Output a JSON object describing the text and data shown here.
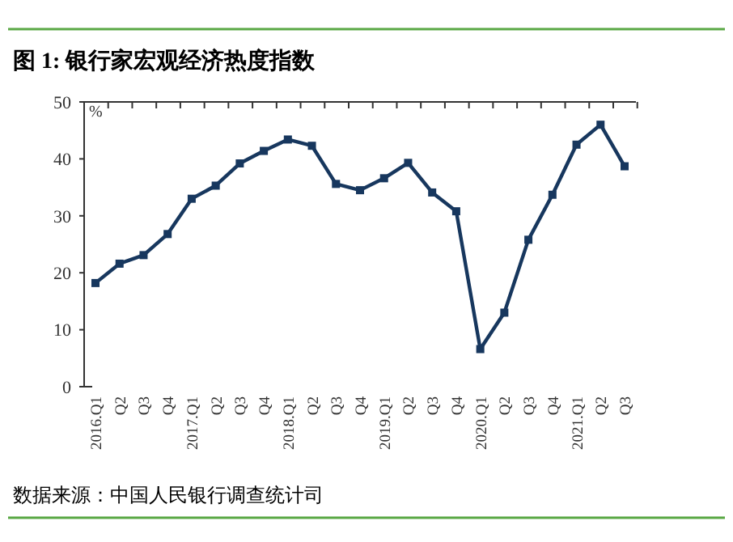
{
  "chart_data": {
    "type": "line",
    "title": "图 1: 银行家宏观经济热度指数",
    "ylabel": "%",
    "annotations": [
      "数据来源：中国人民银行调查统计司"
    ],
    "categories": [
      "2016.Q1",
      "Q2",
      "Q3",
      "Q4",
      "2017.Q1",
      "Q2",
      "Q3",
      "Q4",
      "2018.Q1",
      "Q2",
      "Q3",
      "Q4",
      "2019.Q1",
      "Q2",
      "Q3",
      "Q4",
      "2020.Q1",
      "Q2",
      "Q3",
      "Q4",
      "2021.Q1",
      "Q2",
      "Q3"
    ],
    "series": [
      {
        "color": "#17375e",
        "values": [
          18.2,
          21.6,
          23.1,
          26.8,
          33.0,
          35.3,
          39.2,
          41.4,
          43.4,
          42.3,
          35.6,
          34.5,
          36.6,
          39.3,
          34.1,
          30.8,
          6.6,
          13.0,
          25.8,
          33.7,
          42.5,
          46.0,
          38.7
        ]
      }
    ],
    "ylim": [
      0,
      50
    ],
    "yticks": [
      0,
      10,
      20,
      30,
      40,
      50
    ],
    "grid": false,
    "marker": "square",
    "line_style": "solid"
  }
}
